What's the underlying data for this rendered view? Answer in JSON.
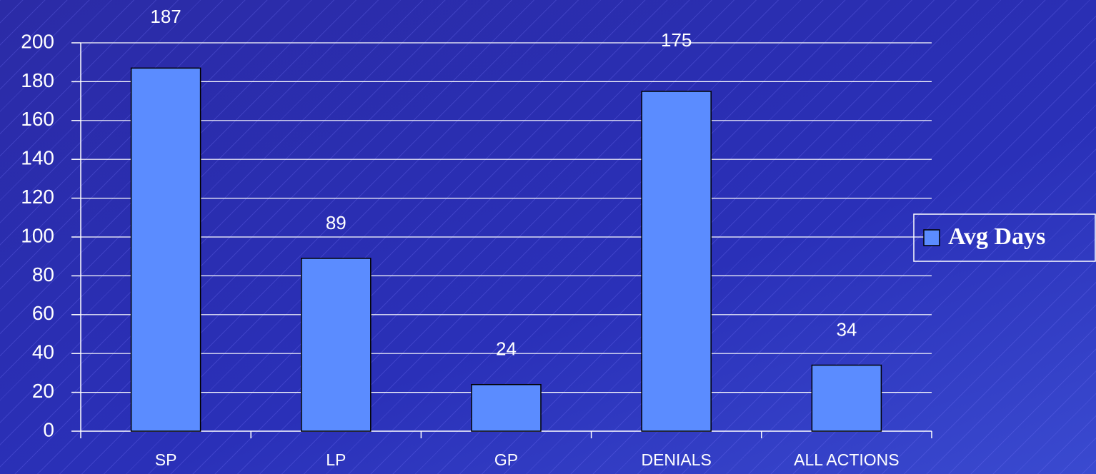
{
  "chart_data": {
    "type": "bar",
    "categories": [
      "SP",
      "LP",
      "GP",
      "DENIALS",
      "ALL ACTIONS"
    ],
    "series": [
      {
        "name": "Avg Days",
        "color": "#5b8cff",
        "values": [
          187,
          89,
          24,
          175,
          34
        ]
      }
    ],
    "ylim": [
      0,
      200
    ],
    "yticks": [
      0,
      20,
      40,
      60,
      80,
      100,
      120,
      140,
      160,
      180,
      200
    ],
    "grid": true,
    "legend": "right"
  }
}
